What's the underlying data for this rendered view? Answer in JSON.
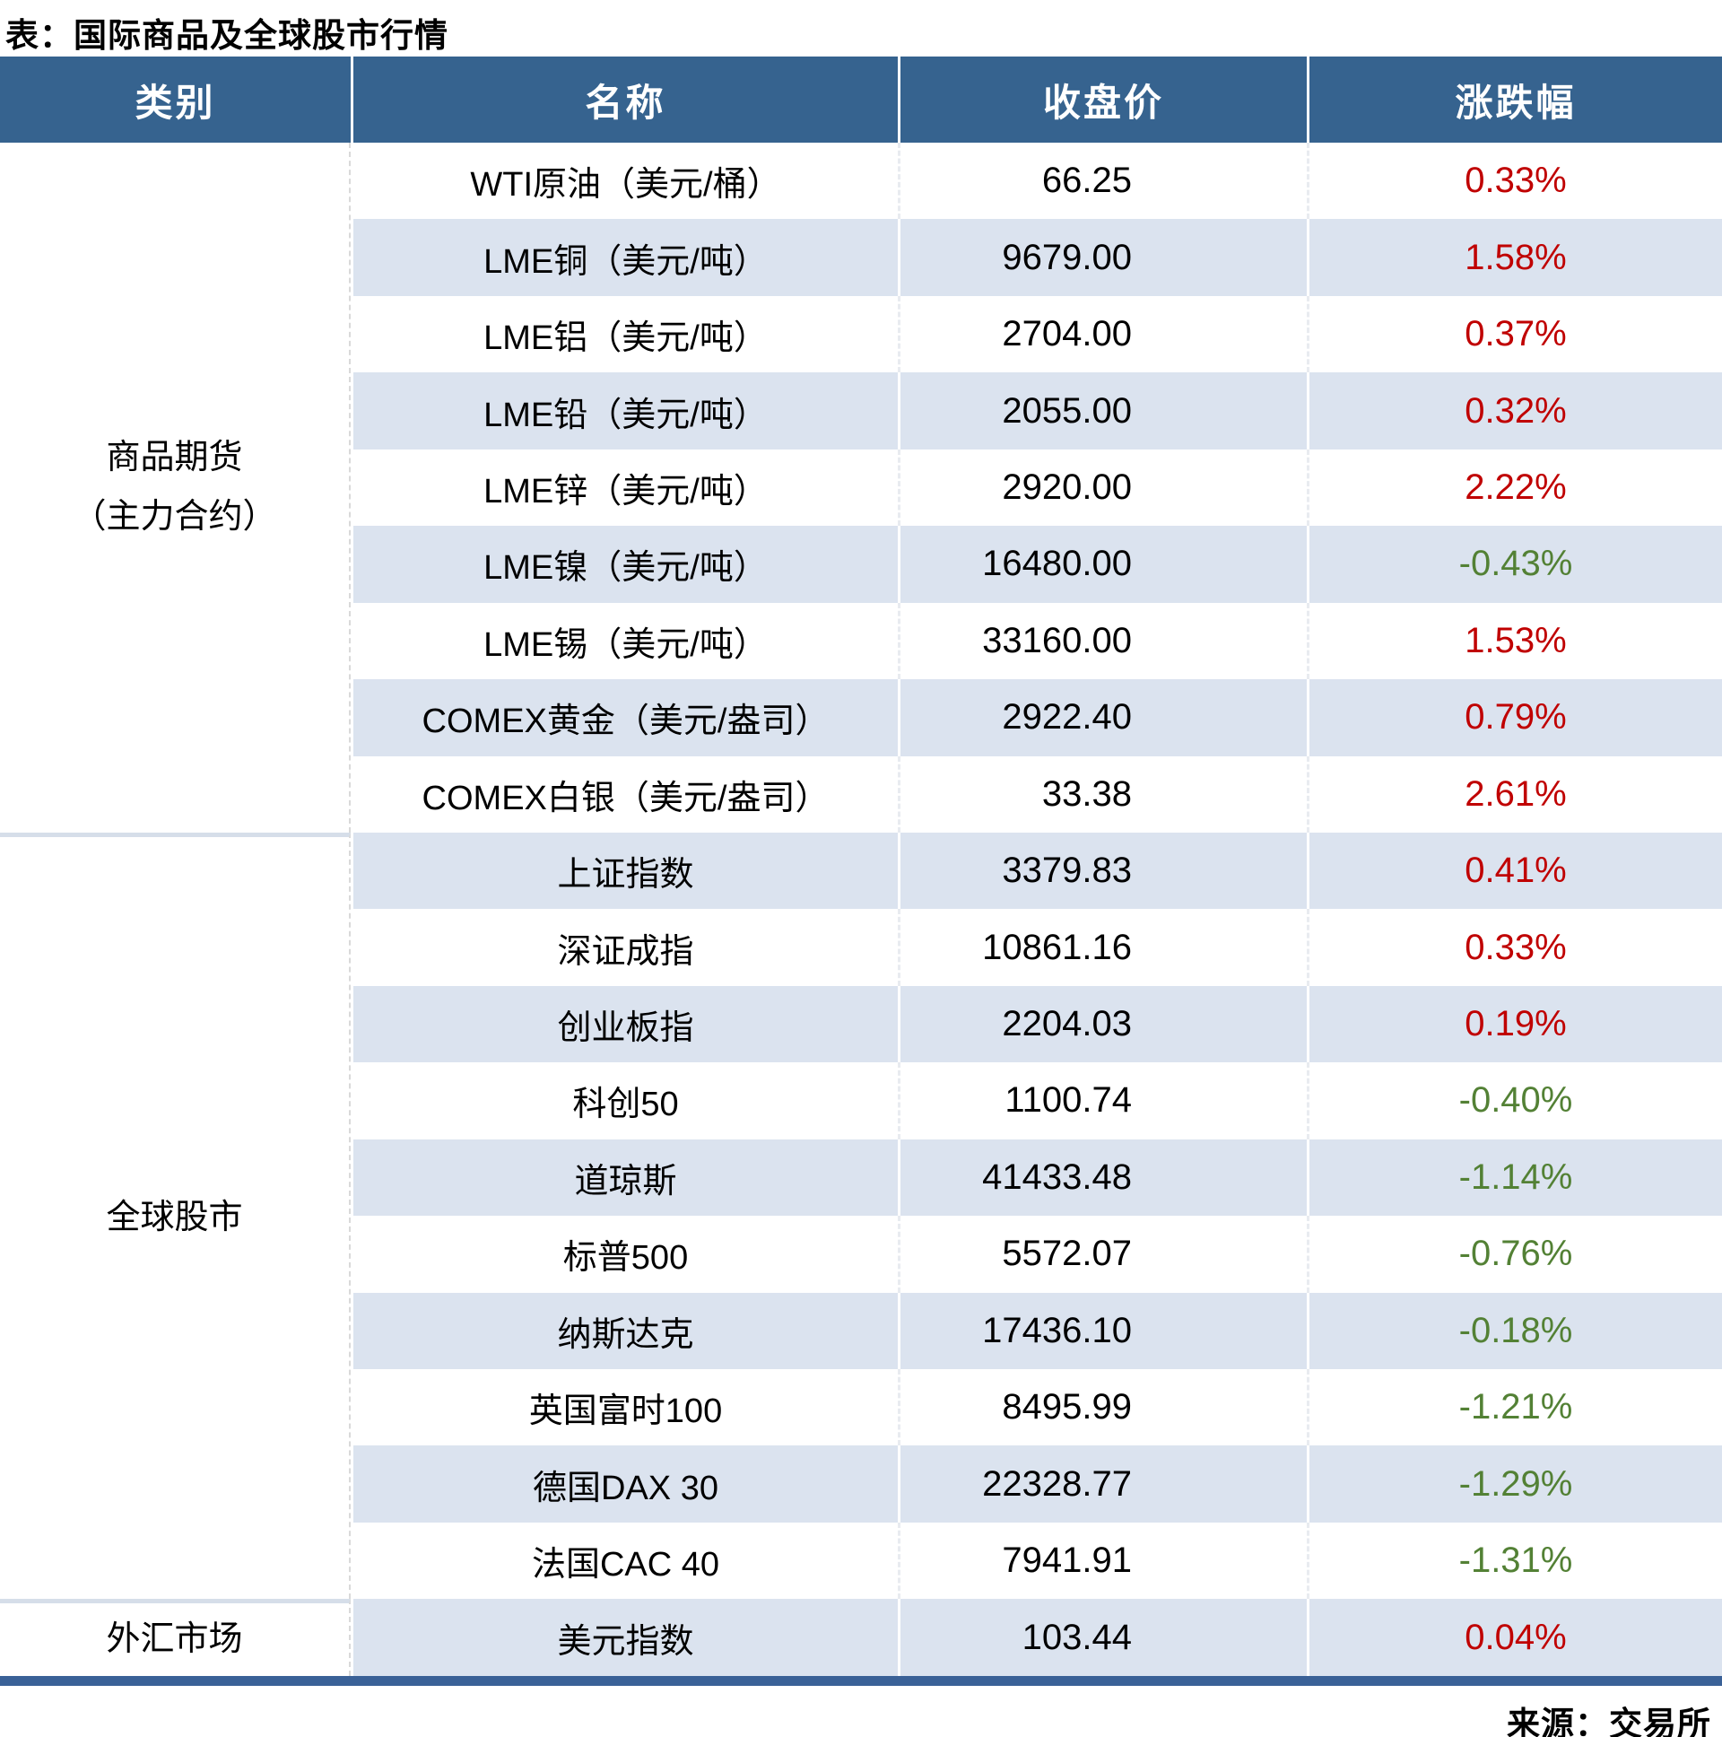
{
  "title": "表：国际商品及全球股市行情",
  "source_note": "来源：交易所",
  "colors": {
    "header_bg": "#36638F",
    "stripe_bg": "#DBE3EF",
    "bottom_bar": "#3A6197",
    "up_red": "#C00000",
    "down_green": "#538135",
    "section_divider": "#D6DEE9"
  },
  "table": {
    "headers": [
      "类别",
      "名称",
      "收盘价",
      "涨跌幅"
    ],
    "sections": [
      {
        "category_lines": [
          "商品期货",
          "（主力合约）"
        ],
        "rows": [
          {
            "name": "WTI原油（美元/桶）",
            "close": "66.25",
            "change": "0.33%"
          },
          {
            "name": "LME铜（美元/吨）",
            "close": "9679.00",
            "change": "1.58%"
          },
          {
            "name": "LME铝（美元/吨）",
            "close": "2704.00",
            "change": "0.37%"
          },
          {
            "name": "LME铅（美元/吨）",
            "close": "2055.00",
            "change": "0.32%"
          },
          {
            "name": "LME锌（美元/吨）",
            "close": "2920.00",
            "change": "2.22%"
          },
          {
            "name": "LME镍（美元/吨）",
            "close": "16480.00",
            "change": "-0.43%"
          },
          {
            "name": "LME锡（美元/吨）",
            "close": "33160.00",
            "change": "1.53%"
          },
          {
            "name": "COMEX黄金（美元/盎司）",
            "close": "2922.40",
            "change": "0.79%"
          },
          {
            "name": "COMEX白银（美元/盎司）",
            "close": "33.38",
            "change": "2.61%"
          }
        ]
      },
      {
        "category_lines": [
          "全球股市"
        ],
        "rows": [
          {
            "name": "上证指数",
            "close": "3379.83",
            "change": "0.41%"
          },
          {
            "name": "深证成指",
            "close": "10861.16",
            "change": "0.33%"
          },
          {
            "name": "创业板指",
            "close": "2204.03",
            "change": "0.19%"
          },
          {
            "name": "科创50",
            "close": "1100.74",
            "change": "-0.40%"
          },
          {
            "name": "道琼斯",
            "close": "41433.48",
            "change": "-1.14%"
          },
          {
            "name": "标普500",
            "close": "5572.07",
            "change": "-0.76%"
          },
          {
            "name": "纳斯达克",
            "close": "17436.10",
            "change": "-0.18%"
          },
          {
            "name": "英国富时100",
            "close": "8495.99",
            "change": "-1.21%"
          },
          {
            "name": "德国DAX 30",
            "close": "22328.77",
            "change": "-1.29%"
          },
          {
            "name": "法国CAC 40",
            "close": "7941.91",
            "change": "-1.31%"
          }
        ]
      },
      {
        "category_lines": [
          "外汇市场"
        ],
        "rows": [
          {
            "name": "美元指数",
            "close": "103.44",
            "change": "0.04%"
          }
        ]
      }
    ]
  },
  "chart_data": {
    "type": "table",
    "title": "表：国际商品及全球股市行情",
    "columns": [
      "类别",
      "名称",
      "收盘价",
      "涨跌幅"
    ],
    "rows": [
      [
        "商品期货（主力合约）",
        "WTI原油（美元/桶）",
        66.25,
        0.33
      ],
      [
        "商品期货（主力合约）",
        "LME铜（美元/吨）",
        9679.0,
        1.58
      ],
      [
        "商品期货（主力合约）",
        "LME铝（美元/吨）",
        2704.0,
        0.37
      ],
      [
        "商品期货（主力合约）",
        "LME铅（美元/吨）",
        2055.0,
        0.32
      ],
      [
        "商品期货（主力合约）",
        "LME锌（美元/吨）",
        2920.0,
        2.22
      ],
      [
        "商品期货（主力合约）",
        "LME镍（美元/吨）",
        16480.0,
        -0.43
      ],
      [
        "商品期货（主力合约）",
        "LME锡（美元/吨）",
        33160.0,
        1.53
      ],
      [
        "商品期货（主力合约）",
        "COMEX黄金（美元/盎司）",
        2922.4,
        0.79
      ],
      [
        "商品期货（主力合约）",
        "COMEX白银（美元/盎司）",
        33.38,
        2.61
      ],
      [
        "全球股市",
        "上证指数",
        3379.83,
        0.41
      ],
      [
        "全球股市",
        "深证成指",
        10861.16,
        0.33
      ],
      [
        "全球股市",
        "创业板指",
        2204.03,
        0.19
      ],
      [
        "全球股市",
        "科创50",
        1100.74,
        -0.4
      ],
      [
        "全球股市",
        "道琼斯",
        41433.48,
        -1.14
      ],
      [
        "全球股市",
        "标普500",
        5572.07,
        -0.76
      ],
      [
        "全球股市",
        "纳斯达克",
        17436.1,
        -0.18
      ],
      [
        "全球股市",
        "英国富时100",
        8495.99,
        -1.21
      ],
      [
        "全球股市",
        "德国DAX 30",
        22328.77,
        -1.29
      ],
      [
        "全球股市",
        "法国CAC 40",
        7941.91,
        -1.31
      ],
      [
        "外汇市场",
        "美元指数",
        103.44,
        0.04
      ]
    ],
    "change_unit": "%",
    "positive_color": "#C00000",
    "negative_color": "#538135",
    "source": "来源：交易所"
  }
}
